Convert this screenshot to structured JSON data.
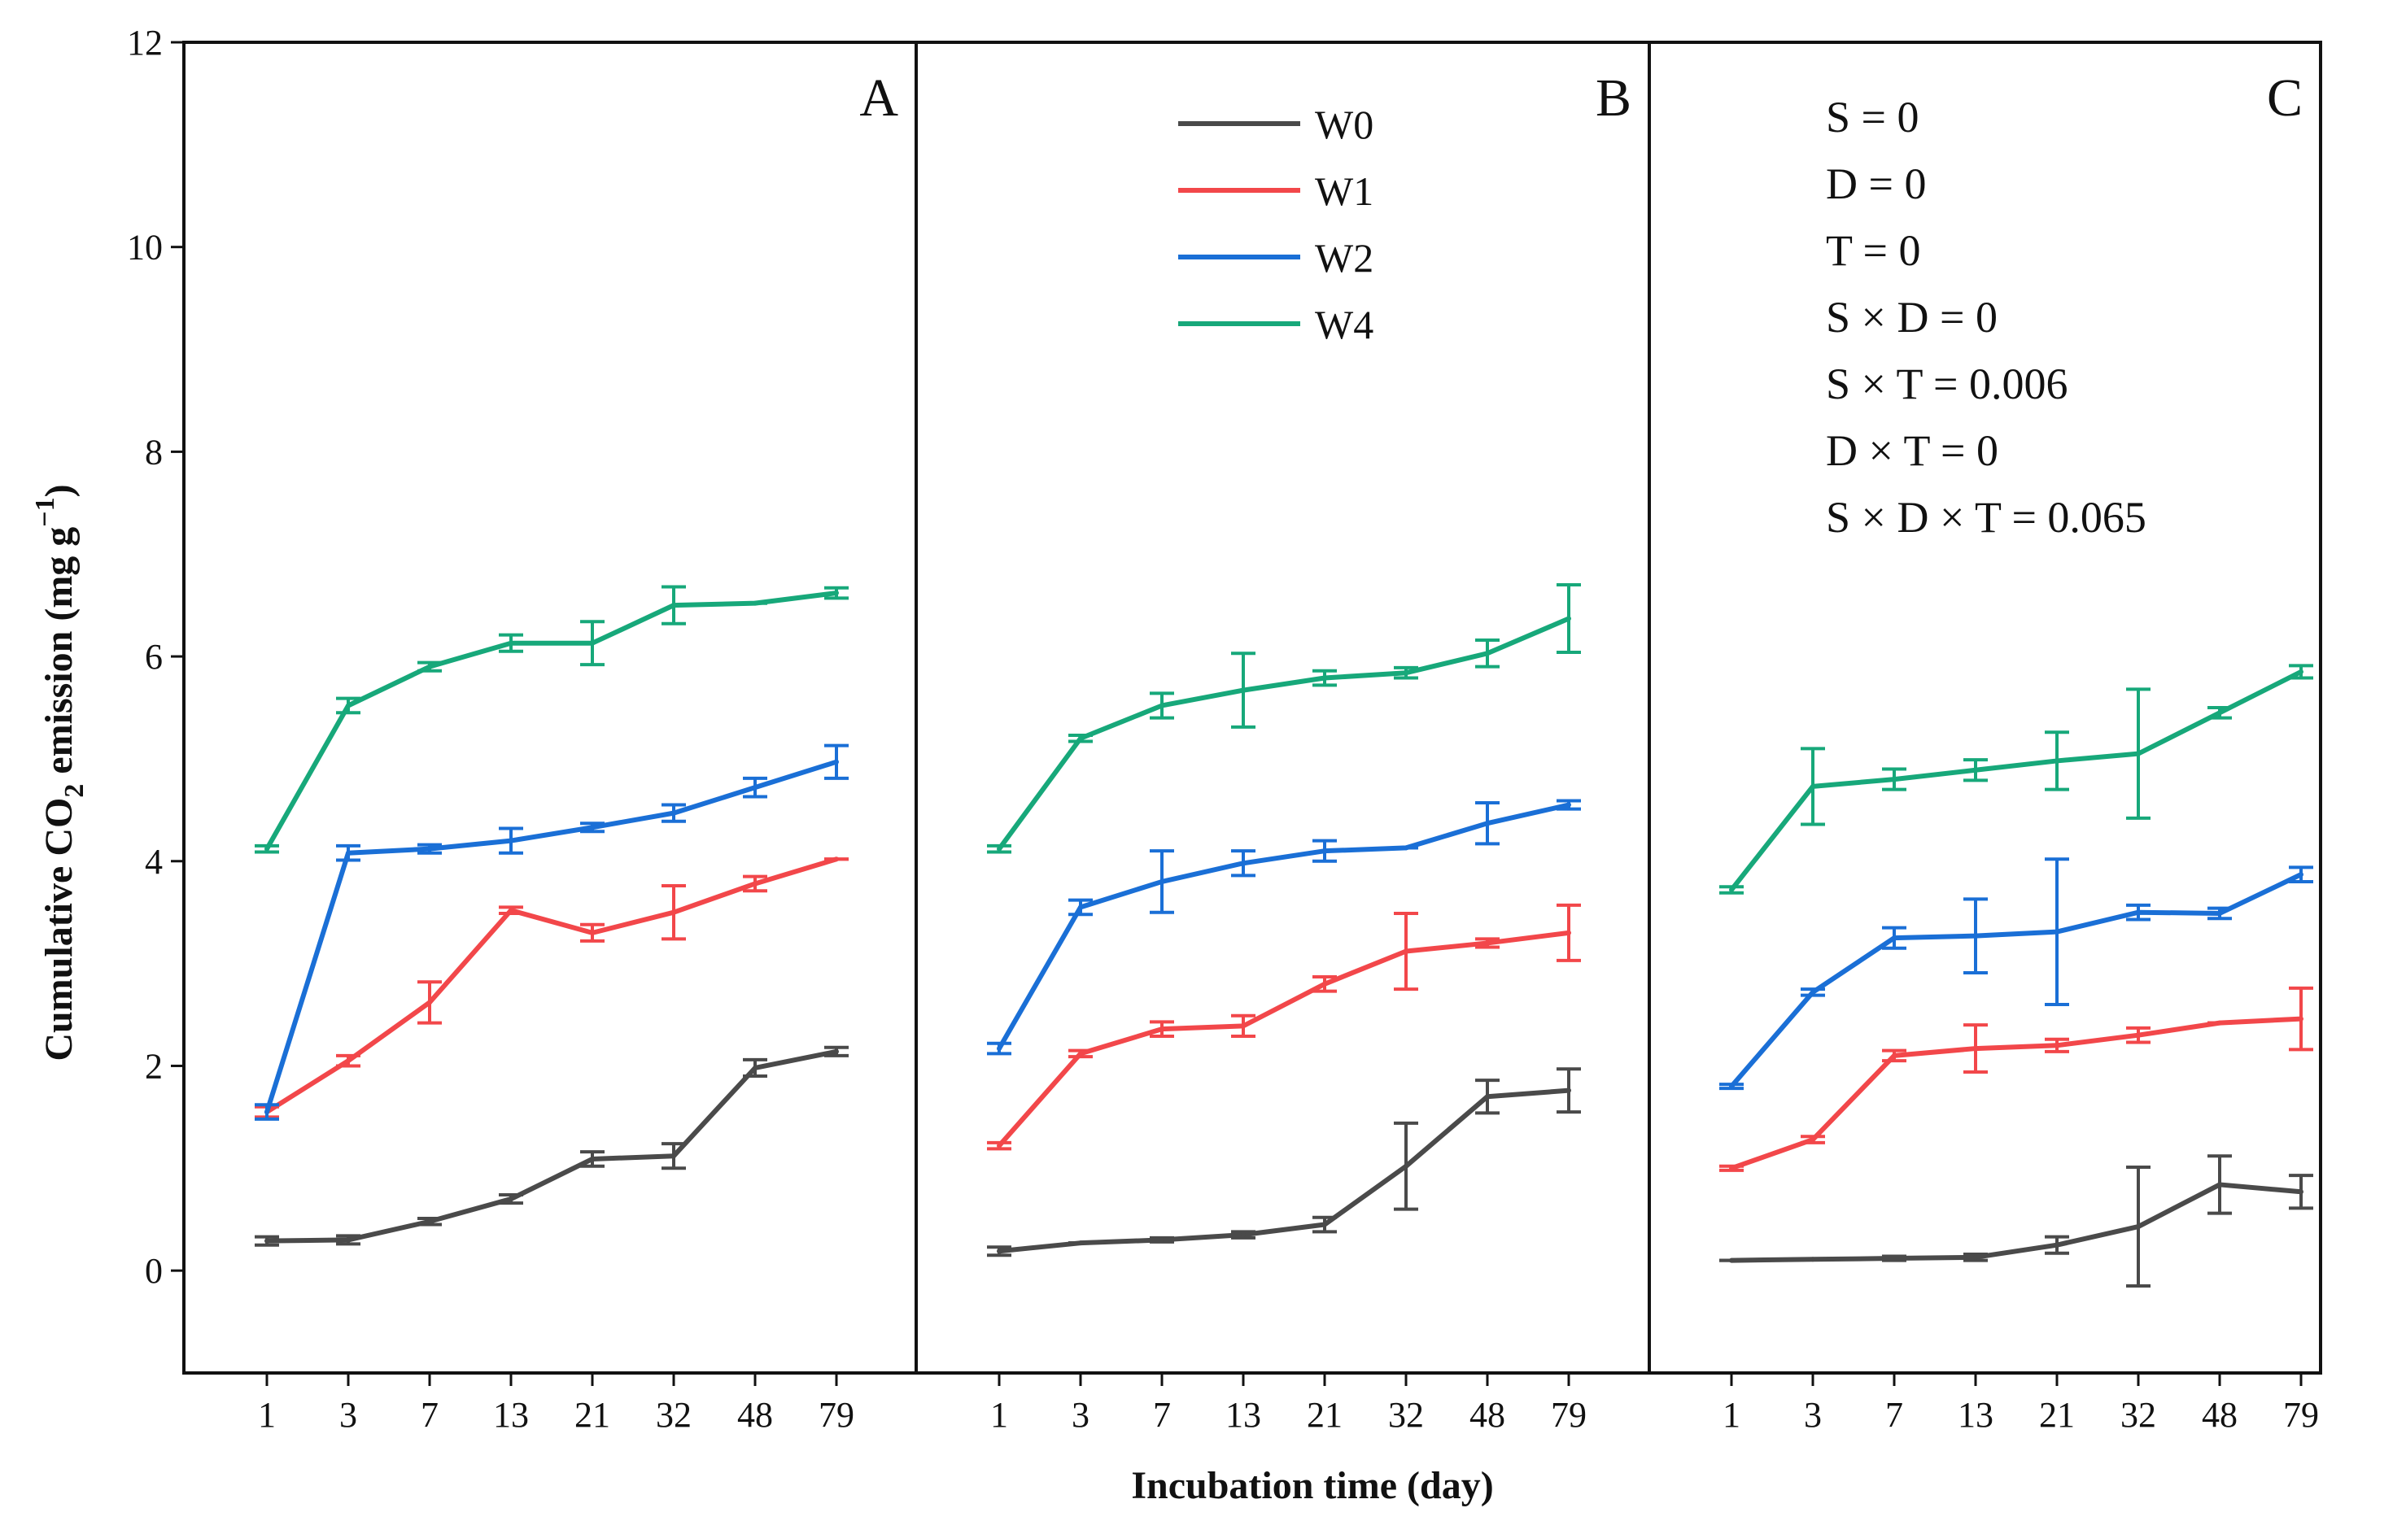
{
  "chart_data": {
    "type": "line",
    "ylabel_parts": {
      "prefix": "Cumulative CO",
      "sub": "2",
      "suffix": " emission (mg g",
      "sup": "−1",
      "close": ")"
    },
    "xlabel": "Incubation time (day)",
    "ylim": [
      -1,
      12
    ],
    "yticks": [
      "0",
      "2",
      "4",
      "6",
      "8",
      "10",
      "12"
    ],
    "categories": [
      "1",
      "3",
      "7",
      "13",
      "21",
      "32",
      "48",
      "79"
    ],
    "colors": {
      "W0": "#4a4a4a",
      "W1": "#f2474a",
      "W2": "#1a6fd6",
      "W4": "#17a87a"
    },
    "legend": [
      "W0",
      "W1",
      "W2",
      "W4"
    ],
    "panels": [
      {
        "label": "A",
        "series": [
          {
            "name": "W0",
            "values": [
              0.29,
              0.3,
              0.48,
              0.7,
              1.09,
              1.12,
              1.98,
              2.14
            ],
            "errors": [
              0.04,
              0.04,
              0.03,
              0.04,
              0.07,
              0.12,
              0.08,
              0.04
            ]
          },
          {
            "name": "W1",
            "values": [
              1.55,
              2.05,
              2.62,
              3.52,
              3.3,
              3.5,
              3.78,
              4.02
            ],
            "errors": [
              0.05,
              0.05,
              0.2,
              0.03,
              0.08,
              0.26,
              0.07,
              0.0
            ]
          },
          {
            "name": "W2",
            "values": [
              1.55,
              4.08,
              4.12,
              4.2,
              4.33,
              4.47,
              4.72,
              4.97
            ],
            "errors": [
              0.07,
              0.07,
              0.04,
              0.12,
              0.04,
              0.08,
              0.09,
              0.16
            ]
          },
          {
            "name": "W4",
            "values": [
              4.12,
              5.52,
              5.9,
              6.13,
              6.13,
              6.5,
              6.52,
              6.62
            ],
            "errors": [
              0.03,
              0.07,
              0.04,
              0.08,
              0.21,
              0.18,
              0.0,
              0.05
            ]
          }
        ]
      },
      {
        "label": "B",
        "series": [
          {
            "name": "W0",
            "values": [
              0.19,
              0.27,
              0.3,
              0.35,
              0.45,
              1.02,
              1.7,
              1.76
            ],
            "errors": [
              0.04,
              0.0,
              0.02,
              0.03,
              0.07,
              0.42,
              0.16,
              0.21
            ]
          },
          {
            "name": "W1",
            "values": [
              1.22,
              2.12,
              2.36,
              2.39,
              2.8,
              3.12,
              3.2,
              3.3
            ],
            "errors": [
              0.03,
              0.03,
              0.07,
              0.1,
              0.07,
              0.37,
              0.04,
              0.27
            ]
          },
          {
            "name": "W2",
            "values": [
              2.17,
              3.55,
              3.8,
              3.98,
              4.1,
              4.13,
              4.37,
              4.55
            ],
            "errors": [
              0.05,
              0.07,
              0.3,
              0.12,
              0.1,
              0.0,
              0.2,
              0.04
            ]
          },
          {
            "name": "W4",
            "values": [
              4.12,
              5.2,
              5.52,
              5.67,
              5.79,
              5.84,
              6.03,
              6.37
            ],
            "errors": [
              0.03,
              0.03,
              0.12,
              0.36,
              0.07,
              0.05,
              0.13,
              0.33
            ]
          }
        ]
      },
      {
        "label": "C",
        "series": [
          {
            "name": "W0",
            "values": [
              0.1,
              0.11,
              0.12,
              0.13,
              0.25,
              0.43,
              0.84,
              0.77
            ],
            "errors": [
              0.0,
              0.0,
              0.02,
              0.03,
              0.08,
              0.58,
              0.28,
              0.16
            ]
          },
          {
            "name": "W1",
            "values": [
              1.0,
              1.28,
              2.1,
              2.17,
              2.2,
              2.3,
              2.42,
              2.46
            ],
            "errors": [
              0.02,
              0.03,
              0.05,
              0.23,
              0.06,
              0.07,
              0.0,
              0.3
            ]
          },
          {
            "name": "W2",
            "values": [
              1.8,
              2.72,
              3.25,
              3.27,
              3.31,
              3.5,
              3.49,
              3.87
            ],
            "errors": [
              0.02,
              0.03,
              0.1,
              0.36,
              0.71,
              0.07,
              0.05,
              0.07
            ]
          },
          {
            "name": "W4",
            "values": [
              3.72,
              4.73,
              4.8,
              4.89,
              4.98,
              5.05,
              5.45,
              5.85
            ],
            "errors": [
              0.03,
              0.37,
              0.1,
              0.1,
              0.28,
              0.63,
              0.05,
              0.06
            ]
          }
        ]
      }
    ],
    "stats": [
      "S = 0",
      "D = 0",
      "T = 0",
      "S × D = 0",
      "S × T = 0.006",
      "D × T = 0",
      "S × D × T = 0.065"
    ]
  }
}
